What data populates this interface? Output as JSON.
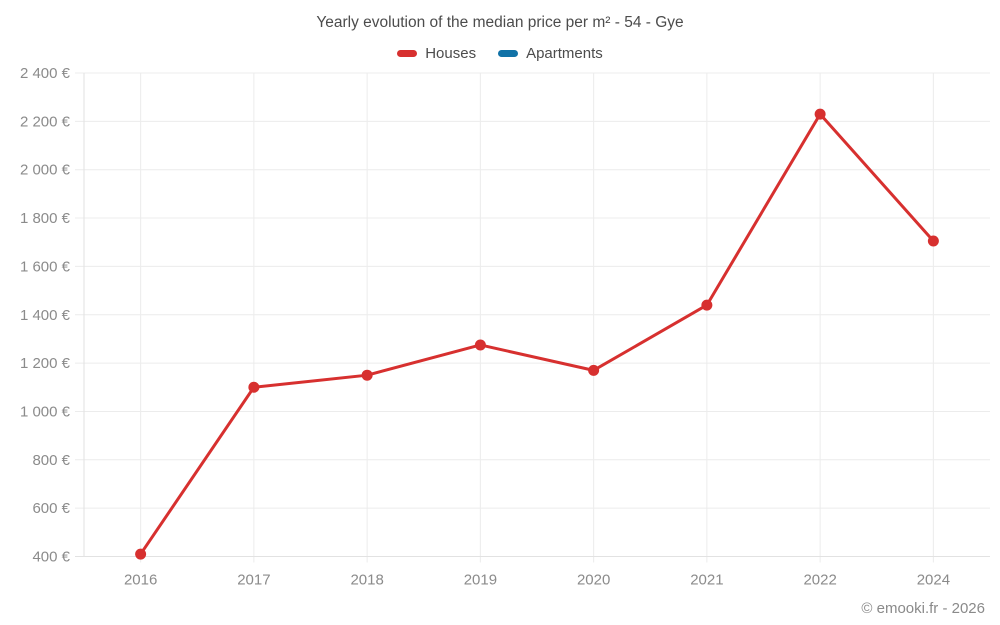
{
  "header": {
    "title": "Yearly evolution of the median price per m² - 54 - Gye"
  },
  "legend": {
    "items": [
      {
        "label": "Houses",
        "color": "#d7302f"
      },
      {
        "label": "Apartments",
        "color": "#1172a7"
      }
    ]
  },
  "footer": {
    "credit": "© emooki.fr - 2026"
  },
  "chart_data": {
    "type": "line",
    "title": "Yearly evolution of the median price per m² - 54 - Gye",
    "categories": [
      "2016",
      "2017",
      "2018",
      "2019",
      "2020",
      "2021",
      "2022",
      "2024"
    ],
    "series": [
      {
        "name": "Houses",
        "color": "#d7302f",
        "values": [
          410,
          1100,
          1150,
          1275,
          1170,
          1440,
          2230,
          1705
        ]
      },
      {
        "name": "Apartments",
        "color": "#1172a7",
        "values": []
      }
    ],
    "xlabel": "",
    "ylabel": "",
    "ylim": [
      400,
      2400
    ],
    "ytick_step": 200,
    "ytick_suffix": " €",
    "grid": true,
    "legend_position": "top",
    "colors": {
      "gridline": "#ececec",
      "axis": "#e2e2e2",
      "tick_text": "#8b8b8b",
      "background": "#ffffff"
    }
  }
}
